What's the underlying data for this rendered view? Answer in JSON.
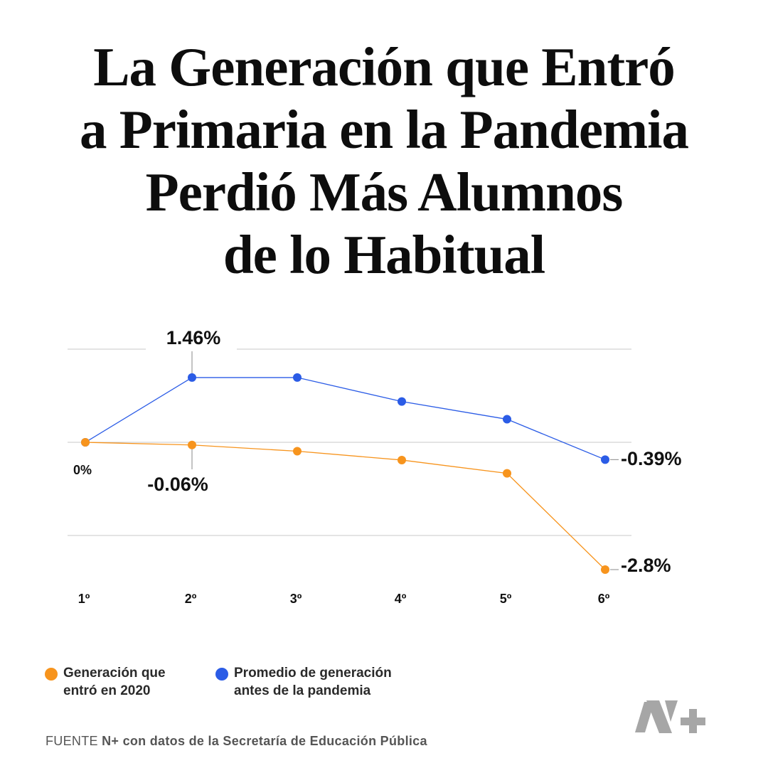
{
  "title": [
    "La Generación que Entró",
    "a Primaria en la Pandemia",
    "Perdió Más Alumnos",
    "de lo Habitual"
  ],
  "chart_data": {
    "type": "line",
    "categories": [
      "1º",
      "2º",
      "3º",
      "4º",
      "5º",
      "6º"
    ],
    "series": [
      {
        "name": "Generación que entró en 2020",
        "color": "#f7941d",
        "values": [
          0,
          -0.06,
          -0.2,
          -0.4,
          -0.7,
          -2.8
        ]
      },
      {
        "name": "Promedio de generación antes de la pandemia",
        "color": "#2b5ce6",
        "values": [
          0,
          1.46,
          1.46,
          0.92,
          0.52,
          -0.39
        ]
      }
    ],
    "data_labels": [
      {
        "series": 1,
        "index": 1,
        "text": "1.46%"
      },
      {
        "series": 0,
        "index": 0,
        "text": "0%"
      },
      {
        "series": 0,
        "index": 1,
        "text": "-0.06%"
      },
      {
        "series": 1,
        "index": 5,
        "text": "-0.39%"
      },
      {
        "series": 0,
        "index": 5,
        "text": "-2.8%"
      }
    ],
    "ylim": [
      -2.1,
      2.1
    ],
    "grid": true
  },
  "legend": {
    "orange": [
      "Generación que",
      "entró en 2020"
    ],
    "blue": [
      "Promedio de generación",
      "antes de la pandemia"
    ]
  },
  "source": {
    "prefix": "FUENTE",
    "brand": "N+",
    "text": "con datos de la Secretaría de Educación Pública"
  },
  "logo": {
    "name": "nplus-logo",
    "text": "N+",
    "color": "#a6a6a6"
  }
}
